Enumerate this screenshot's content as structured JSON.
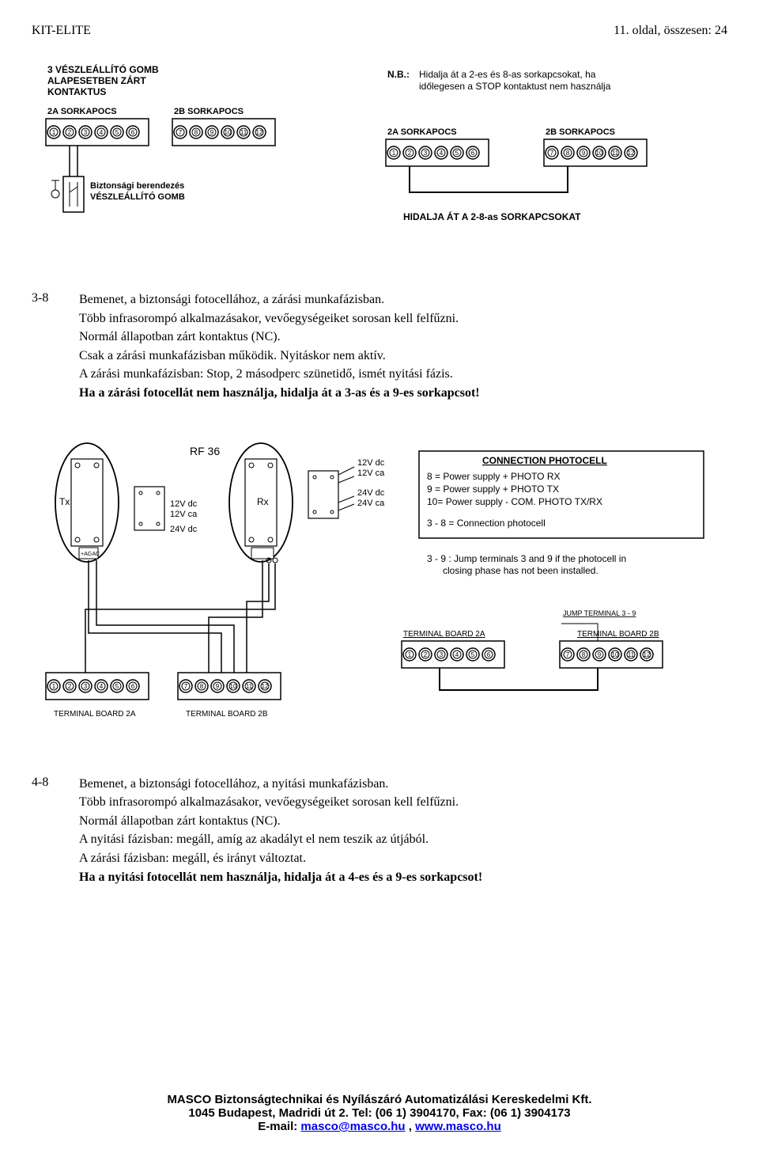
{
  "header": {
    "left": "KIT-ELITE",
    "right": "11. oldal, összesen: 24"
  },
  "diagram1": {
    "title_lines": [
      "3 VÉSZLEÁLLÍTÓ GOMB",
      "ALAPESETBEN ZÁRT",
      "KONTAKTUS"
    ],
    "left_block_label": "2A SORKAPOCS",
    "right_block_label": "2B SORKAPOCS",
    "terminals_a": [
      "1",
      "2",
      "3",
      "4",
      "5",
      "6"
    ],
    "terminals_b": [
      "7",
      "8",
      "9",
      "10",
      "11",
      "12"
    ],
    "device_lines": [
      "Biztonsági berendezés",
      "VÉSZLEÁLLÍTÓ GOMB"
    ],
    "nb_prefix": "N.B.:",
    "nb_lines": [
      "Hidalja át a 2-es és 8-as sorkapcsokat, ha",
      "időlegesen a STOP kontaktust nem használja"
    ],
    "right_a_label": "2A SORKAPOCS",
    "right_b_label": "2B SORKAPOCS",
    "bottom_note": "HIDALJA ÁT A 2-8-as SORKAPCSOKAT"
  },
  "section38": {
    "num": "3-8",
    "p1": "Bemenet, a biztonsági fotocellához, a zárási munkafázisban.",
    "p2": "Több infrasorompó alkalmazásakor, vevőegységeiket sorosan kell felfűzni.",
    "p3": "Normál állapotban zárt kontaktus (NC).",
    "p4": "Csak a zárási munkafázisban működik. Nyitáskor nem aktív.",
    "p5": "A zárási munkafázisban: Stop, 2 másodperc szünetidő, ismét nyitási fázis.",
    "p6": "Ha a zárási fotocellát nem használja, hidalja át a 3-as és a 9-es sorkapcsot!"
  },
  "diagram2": {
    "rf_label": "RF 36",
    "tx": "Tx",
    "rx": "Rx",
    "volt_lines_a": [
      "12V dc",
      "12V ca",
      "24V dc"
    ],
    "volt_lines_b": [
      "12V dc",
      "12V ca",
      "24V dc",
      "24V ca"
    ],
    "ac_labels": [
      "+AC",
      "-AC"
    ],
    "box_title": "CONNECTION PHOTOCELL",
    "box_lines": [
      "8  =  Power supply  + PHOTO RX",
      "9  =  Power supply  + PHOTO TX",
      "10=  Power supply  - COM.  PHOTO TX/RX",
      "3 - 8  =  Connection photocell"
    ],
    "jump_note": [
      "3 - 9 : Jump terminals 3 and 9 if the photocell in",
      "closing phase has not been installed."
    ],
    "jump_label": "JUMP TERMINAL 3 - 9",
    "tb2a": "TERMINAL BOARD 2A",
    "tb2b": "TERMINAL BOARD 2B",
    "terms_a": [
      "1",
      "2",
      "3",
      "4",
      "5",
      "6"
    ],
    "terms_b": [
      "7",
      "8",
      "9",
      "10",
      "11",
      "12"
    ]
  },
  "section48": {
    "num": "4-8",
    "p1": "Bemenet, a biztonsági fotocellához, a nyitási munkafázisban.",
    "p2": "Több infrasorompó alkalmazásakor, vevőegységeiket sorosan kell felfűzni.",
    "p3": "Normál állapotban zárt kontaktus (NC).",
    "p4": "A nyitási fázisban: megáll, amíg az akadályt el nem teszik az útjából.",
    "p5": "A zárási fázisban: megáll, és irányt változtat.",
    "p6": "Ha a nyitási fotocellát nem használja, hidalja át a 4-es és a 9-es sorkapcsot!"
  },
  "footer": {
    "l1": "MASCO Biztonságtechnikai és Nyílászáró Automatizálási Kereskedelmi Kft.",
    "l2": "1045 Budapest, Madridi út 2. Tel: (06 1) 3904170, Fax: (06 1) 3904173",
    "l3_prefix": "E-mail: ",
    "email": "masco@masco.hu",
    "l3_mid": " , ",
    "web": "www.masco.hu"
  }
}
